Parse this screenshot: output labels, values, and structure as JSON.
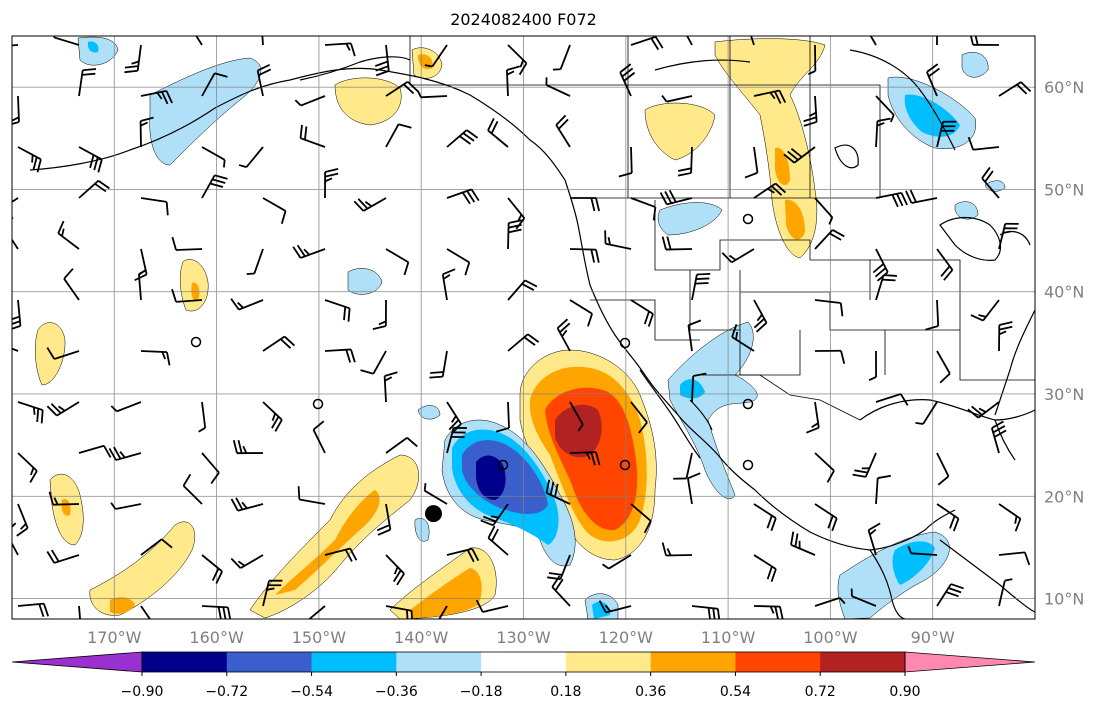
{
  "title": "2024082400 F072",
  "map": {
    "projection": "equirectangular",
    "lon_range": [
      -180,
      -80
    ],
    "lat_range": [
      8,
      65
    ],
    "lon_ticks": [
      "170°W",
      "160°W",
      "150°W",
      "140°W",
      "130°W",
      "120°W",
      "110°W",
      "100°W",
      "90°W"
    ],
    "lon_tick_values": [
      -170,
      -160,
      -150,
      -140,
      -130,
      -120,
      -110,
      -100,
      -90
    ],
    "lat_ticks": [
      "10°N",
      "20°N",
      "30°N",
      "40°N",
      "50°N",
      "60°N"
    ],
    "lat_tick_values": [
      10,
      20,
      30,
      40,
      50,
      60
    ],
    "grid": true,
    "wind_barbs": true,
    "storm_marker": {
      "lon": -138.8,
      "lat": 18.3
    }
  },
  "colorbar": {
    "levels": [
      "−0.90",
      "−0.72",
      "−0.54",
      "−0.36",
      "−0.18",
      "0.18",
      "0.36",
      "0.54",
      "0.72",
      "0.90"
    ],
    "colors": [
      "#9b30d0",
      "#00008b",
      "#3a5fcd",
      "#00bfff",
      "#b0e0f8",
      "#ffffff",
      "#ffe98a",
      "#ffa500",
      "#ff4500",
      "#b22222",
      "#ff88b0"
    ],
    "extend": "both"
  },
  "field_colors": {
    "pos1": "#ffe98a",
    "pos2": "#ffa500",
    "pos3": "#ff4500",
    "pos4": "#b22222",
    "neg1": "#b0e0f8",
    "neg2": "#00bfff",
    "neg3": "#3a5fcd",
    "neg4": "#00008b"
  }
}
